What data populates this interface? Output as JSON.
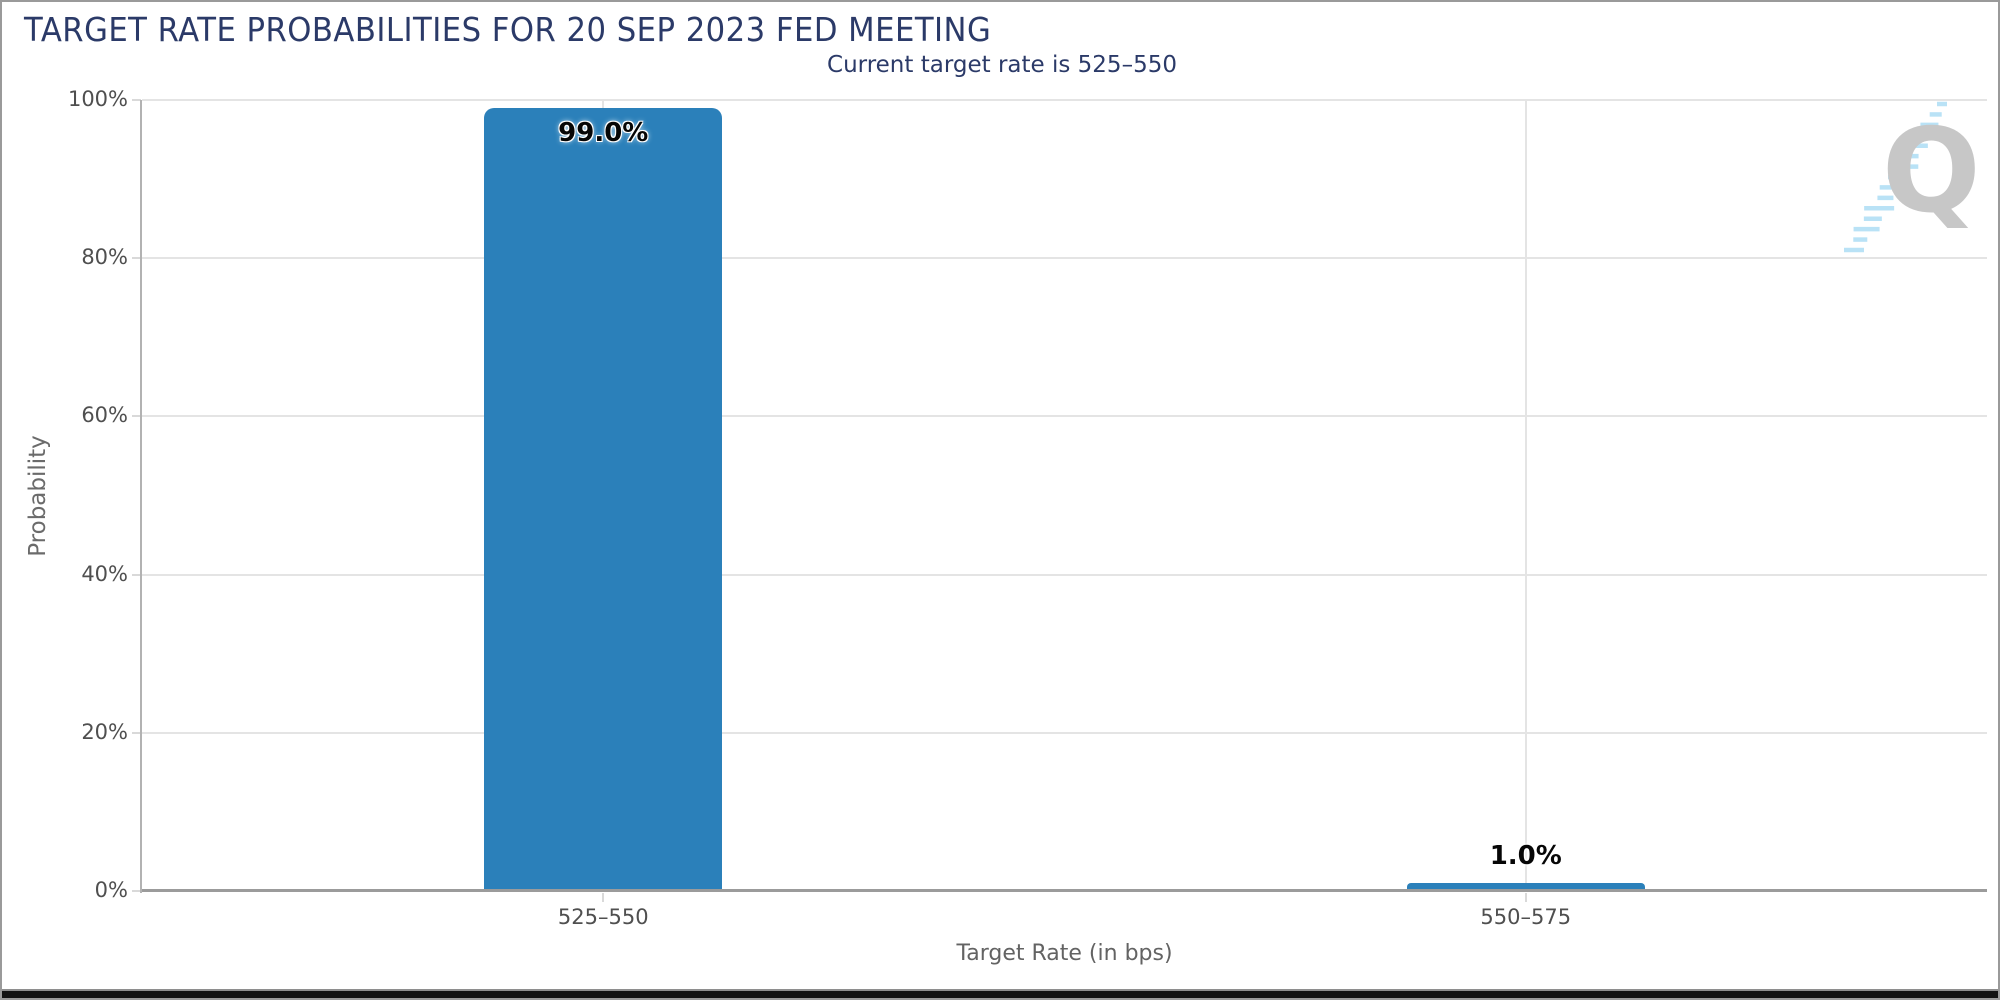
{
  "header": {
    "title": "TARGET RATE PROBABILITIES FOR 20 SEP 2023 FED MEETING",
    "subtitle": "Current target rate is 525–550"
  },
  "chart_data": {
    "type": "bar",
    "title": "TARGET RATE PROBABILITIES FOR 20 SEP 2023 FED MEETING",
    "subtitle": "Current target rate is 525–550",
    "categories": [
      "525–550",
      "550–575"
    ],
    "values": [
      99.0,
      1.0
    ],
    "value_labels": [
      "99.0%",
      "1.0%"
    ],
    "xlabel": "Target Rate (in bps)",
    "ylabel": "Probability",
    "yticks": [
      0,
      20,
      40,
      60,
      80,
      100
    ],
    "ytick_labels": [
      "0%",
      "20%",
      "40%",
      "60%",
      "80%",
      "100%"
    ],
    "ylim": [
      0,
      100
    ],
    "grid": "on",
    "legend": "none",
    "bar_color": "#2b80ba",
    "title_color": "#2b3a68",
    "tick_label_color": "#4f4f4f",
    "axis_title_color": "#636363"
  },
  "logo": {
    "glyph": "Q",
    "name": "quant-q-watermark"
  }
}
